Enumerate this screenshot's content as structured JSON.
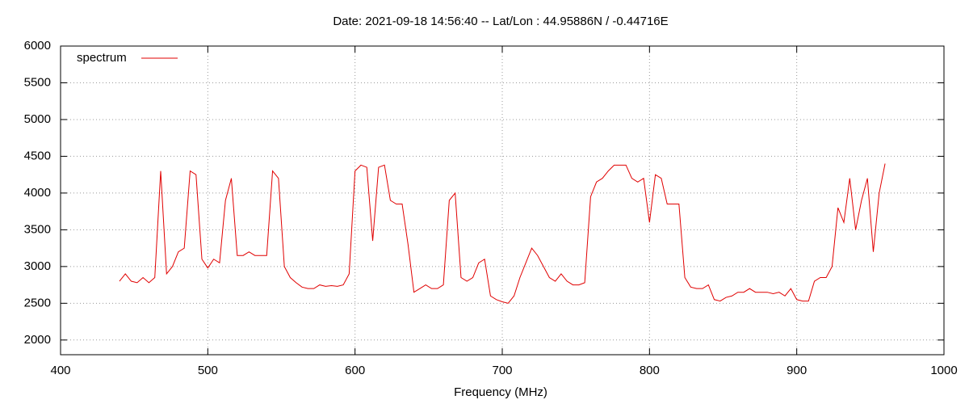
{
  "chart_data": {
    "type": "line",
    "title": "Date: 2021-09-18 14:56:40  --  Lat/Lon : 44.95886N / -0.44716E",
    "x_label": "Frequency (MHz)",
    "legend": "top-left",
    "grid": true,
    "xlim": [
      400,
      1000
    ],
    "xticks": [
      400,
      500,
      600,
      700,
      800,
      900,
      1000
    ],
    "ylim": [
      1800,
      6000
    ],
    "yticks": [
      2000,
      2500,
      3000,
      3500,
      4000,
      4500,
      5000,
      5500,
      6000
    ],
    "x": [
      440,
      444,
      448,
      452,
      456,
      460,
      464,
      468,
      472,
      476,
      480,
      484,
      488,
      492,
      496,
      500,
      504,
      508,
      512,
      516,
      520,
      524,
      528,
      532,
      536,
      540,
      544,
      548,
      552,
      556,
      560,
      564,
      568,
      572,
      576,
      580,
      584,
      588,
      592,
      596,
      600,
      604,
      608,
      612,
      616,
      620,
      624,
      628,
      632,
      636,
      640,
      644,
      648,
      652,
      656,
      660,
      664,
      668,
      672,
      676,
      680,
      684,
      688,
      692,
      696,
      700,
      704,
      708,
      712,
      716,
      720,
      724,
      728,
      732,
      736,
      740,
      744,
      748,
      752,
      756,
      760,
      764,
      768,
      772,
      776,
      780,
      784,
      788,
      792,
      796,
      800,
      804,
      808,
      812,
      816,
      820,
      824,
      828,
      832,
      836,
      840,
      844,
      848,
      852,
      856,
      860,
      864,
      868,
      872,
      876,
      880,
      884,
      888,
      892,
      896,
      900,
      904,
      908,
      912,
      916,
      920,
      924,
      928,
      932,
      936,
      940,
      944,
      948,
      952,
      956,
      960
    ],
    "series": [
      {
        "name": "spectrum",
        "color": "#e00000",
        "values": [
          2800,
          2900,
          2800,
          2780,
          2850,
          2780,
          2850,
          4300,
          2900,
          3000,
          3200,
          3250,
          4300,
          4250,
          3100,
          2980,
          3100,
          3050,
          3900,
          4200,
          3150,
          3150,
          3200,
          3150,
          3150,
          3150,
          4300,
          4200,
          3000,
          2850,
          2780,
          2720,
          2700,
          2700,
          2750,
          2730,
          2740,
          2730,
          2750,
          2900,
          4300,
          4380,
          4350,
          3350,
          4350,
          4380,
          3900,
          3850,
          3850,
          3300,
          2650,
          2700,
          2750,
          2700,
          2700,
          2750,
          3900,
          4000,
          2850,
          2800,
          2850,
          3050,
          3100,
          2600,
          2550,
          2520,
          2500,
          2600,
          2850,
          3050,
          3250,
          3150,
          3000,
          2850,
          2800,
          2900,
          2800,
          2750,
          2750,
          2780,
          3950,
          4150,
          4200,
          4300,
          4380,
          4380,
          4380,
          4200,
          4150,
          4200,
          3600,
          4250,
          4200,
          3850,
          3850,
          3850,
          2850,
          2720,
          2700,
          2700,
          2750,
          2550,
          2530,
          2580,
          2600,
          2650,
          2650,
          2700,
          2650,
          2650,
          2650,
          2630,
          2650,
          2600,
          2700,
          2550,
          2530,
          2530,
          2800,
          2850,
          2850,
          3000,
          3800,
          3600,
          4200,
          3500,
          3900,
          4200,
          3200,
          4000,
          4400
        ]
      }
    ]
  }
}
